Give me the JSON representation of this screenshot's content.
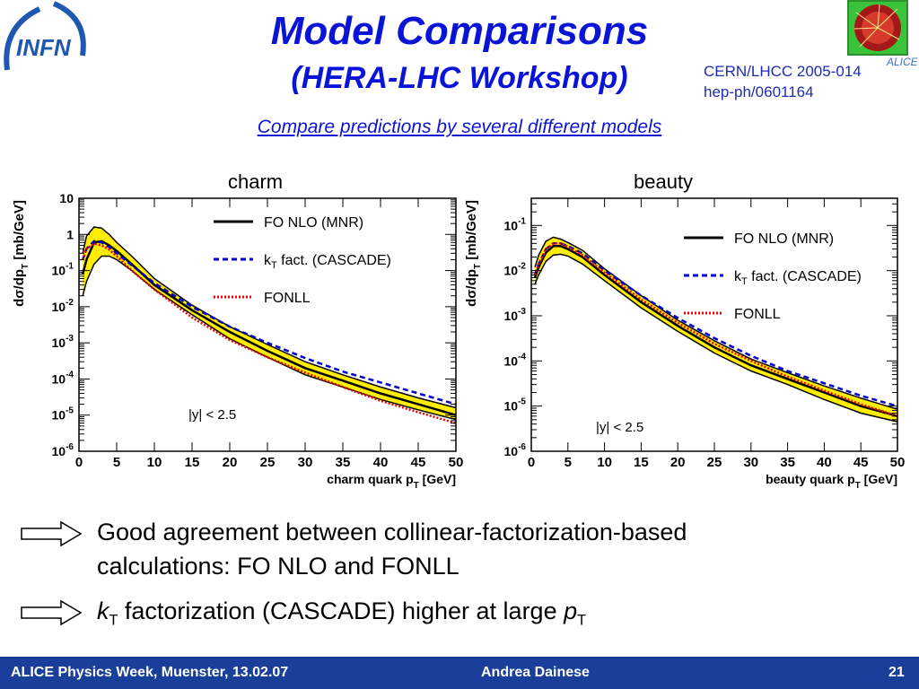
{
  "slide": {
    "title": "Model Comparisons",
    "subtitle_paren": "(HERA-LHC Workshop)",
    "references": [
      "CERN/LHCC 2005-014",
      "hep-ph/0601164"
    ],
    "tagline": "Compare predictions by several different models",
    "logo_left_text": "INFN",
    "logo_right_text": "ALICE"
  },
  "chart_data": [
    {
      "type": "line",
      "panel_title": "charm",
      "xlabel": "charm quark p",
      "xlabel_sub": "T",
      "xlabel_unit": " [GeV]",
      "ylabel": "dσ/dp",
      "ylabel_sub": "T",
      "ylabel_unit": " [mb/GeV]",
      "xlim": [
        0,
        50
      ],
      "ylim": [
        1e-06,
        10
      ],
      "yscale": "log",
      "xticks": [
        0,
        5,
        10,
        15,
        20,
        25,
        30,
        35,
        40,
        45,
        50
      ],
      "yticks": [
        {
          "v": 1e-06,
          "base": "10",
          "exp": "-6"
        },
        {
          "v": 1e-05,
          "base": "10",
          "exp": "-5"
        },
        {
          "v": 0.0001,
          "base": "10",
          "exp": "-4"
        },
        {
          "v": 0.001,
          "base": "10",
          "exp": "-3"
        },
        {
          "v": 0.01,
          "base": "10",
          "exp": "-2"
        },
        {
          "v": 0.1,
          "base": "10",
          "exp": "-1"
        },
        {
          "v": 1,
          "base": "1",
          "exp": ""
        },
        {
          "v": 10,
          "base": "10",
          "exp": ""
        }
      ],
      "annotation": "|y| < 2.5",
      "x": [
        0.5,
        1,
        2,
        3,
        4,
        5,
        7,
        10,
        15,
        20,
        25,
        30,
        35,
        40,
        45,
        50
      ],
      "series": [
        {
          "name": "FO NLO (MNR)",
          "legend_sub": "",
          "legend_after": "",
          "style": "solid",
          "color": "#000000",
          "values": [
            0.08,
            0.2,
            0.6,
            0.65,
            0.5,
            0.35,
            0.15,
            0.04,
            0.008,
            0.002,
            0.0006,
            0.0002,
            9e-05,
            4e-05,
            2e-05,
            1e-05
          ],
          "band": {
            "low": [
              0.02,
              0.05,
              0.15,
              0.25,
              0.25,
              0.2,
              0.1,
              0.03,
              0.006,
              0.0013,
              0.0004,
              0.00013,
              6e-05,
              2.7e-05,
              1.4e-05,
              7.5e-06
            ],
            "high": [
              0.3,
              0.9,
              1.6,
              1.5,
              1.0,
              0.6,
              0.25,
              0.06,
              0.011,
              0.0028,
              0.0009,
              0.0003,
              0.00013,
              6e-05,
              3e-05,
              1.6e-05
            ]
          }
        },
        {
          "name": "k",
          "legend_sub": "T",
          "legend_after": " fact. (CASCADE)",
          "style": "dashed",
          "color": "#0000cc",
          "values": [
            0.2,
            0.4,
            0.65,
            0.6,
            0.45,
            0.3,
            0.14,
            0.045,
            0.01,
            0.0028,
            0.001,
            0.00038,
            0.00016,
            8e-05,
            4e-05,
            2e-05
          ]
        },
        {
          "name": "FONLL",
          "legend_sub": "",
          "legend_after": "",
          "style": "dotted",
          "color": "#ee0000",
          "values": [
            0.2,
            0.4,
            0.55,
            0.5,
            0.38,
            0.25,
            0.1,
            0.03,
            0.005,
            0.0012,
            0.0004,
            0.00015,
            6e-05,
            2.5e-05,
            1.2e-05,
            6e-06
          ]
        }
      ]
    },
    {
      "type": "line",
      "panel_title": "beauty",
      "xlabel": "beauty quark p",
      "xlabel_sub": "T",
      "xlabel_unit": " [GeV]",
      "ylabel": "dσ/dp",
      "ylabel_sub": "T",
      "ylabel_unit": " [mb/GeV]",
      "xlim": [
        0,
        50
      ],
      "ylim": [
        1e-06,
        0.4
      ],
      "yscale": "log",
      "xticks": [
        0,
        5,
        10,
        15,
        20,
        25,
        30,
        35,
        40,
        45,
        50
      ],
      "yticks": [
        {
          "v": 1e-06,
          "base": "10",
          "exp": "-6"
        },
        {
          "v": 1e-05,
          "base": "10",
          "exp": "-5"
        },
        {
          "v": 0.0001,
          "base": "10",
          "exp": "-4"
        },
        {
          "v": 0.001,
          "base": "10",
          "exp": "-3"
        },
        {
          "v": 0.01,
          "base": "10",
          "exp": "-2"
        },
        {
          "v": 0.1,
          "base": "10",
          "exp": "-1"
        }
      ],
      "annotation": "|y| < 2.5",
      "x": [
        0.5,
        1,
        2,
        3,
        4,
        5,
        7,
        10,
        15,
        20,
        25,
        30,
        35,
        40,
        45,
        50
      ],
      "series": [
        {
          "name": "FO NLO (MNR)",
          "legend_sub": "",
          "legend_after": "",
          "style": "solid",
          "color": "#000000",
          "values": [
            0.007,
            0.012,
            0.025,
            0.035,
            0.035,
            0.03,
            0.02,
            0.008,
            0.002,
            0.0006,
            0.0002,
            8e-05,
            4e-05,
            2e-05,
            1e-05,
            6e-06
          ],
          "band": {
            "low": [
              0.005,
              0.008,
              0.016,
              0.022,
              0.023,
              0.021,
              0.014,
              0.006,
              0.0015,
              0.00045,
              0.00015,
              6e-05,
              3e-05,
              1.4e-05,
              7e-06,
              4.5e-06
            ],
            "high": [
              0.012,
              0.022,
              0.045,
              0.055,
              0.05,
              0.042,
              0.028,
              0.011,
              0.0028,
              0.0008,
              0.00028,
              0.00011,
              5.5e-05,
              2.8e-05,
              1.5e-05,
              8.5e-06
            ]
          }
        },
        {
          "name": "k",
          "legend_sub": "T",
          "legend_after": " fact. (CASCADE)",
          "style": "dashed",
          "color": "#0000cc",
          "values": [
            0.008,
            0.014,
            0.03,
            0.04,
            0.04,
            0.035,
            0.024,
            0.01,
            0.0028,
            0.0009,
            0.00032,
            0.00013,
            6e-05,
            3.2e-05,
            1.7e-05,
            1e-05
          ]
        },
        {
          "name": "FONLL",
          "legend_sub": "",
          "legend_after": "",
          "style": "dotted",
          "color": "#ee0000",
          "values": [
            0.008,
            0.014,
            0.03,
            0.04,
            0.04,
            0.034,
            0.022,
            0.009,
            0.0023,
            0.0007,
            0.00024,
            0.0001,
            4.5e-05,
            2.2e-05,
            1.1e-05,
            6e-06
          ]
        }
      ]
    }
  ],
  "bullets": [
    {
      "html_parts": [
        "Good agreement between collinear-factorization-based",
        "calculations: FO NLO and FONLL"
      ]
    },
    {
      "k": "k",
      "k_sub": "T",
      "middle": " factorization (CASCADE) higher at large ",
      "p": "p",
      "p_sub": "T"
    }
  ],
  "footer": {
    "event": "ALICE Physics Week, Muenster, 13.02.07",
    "author": "Andrea Dainese",
    "page": "21"
  },
  "colors": {
    "title": "#0a14d6",
    "footer_bg": "#1a3f9a",
    "band": "#ffee00"
  }
}
